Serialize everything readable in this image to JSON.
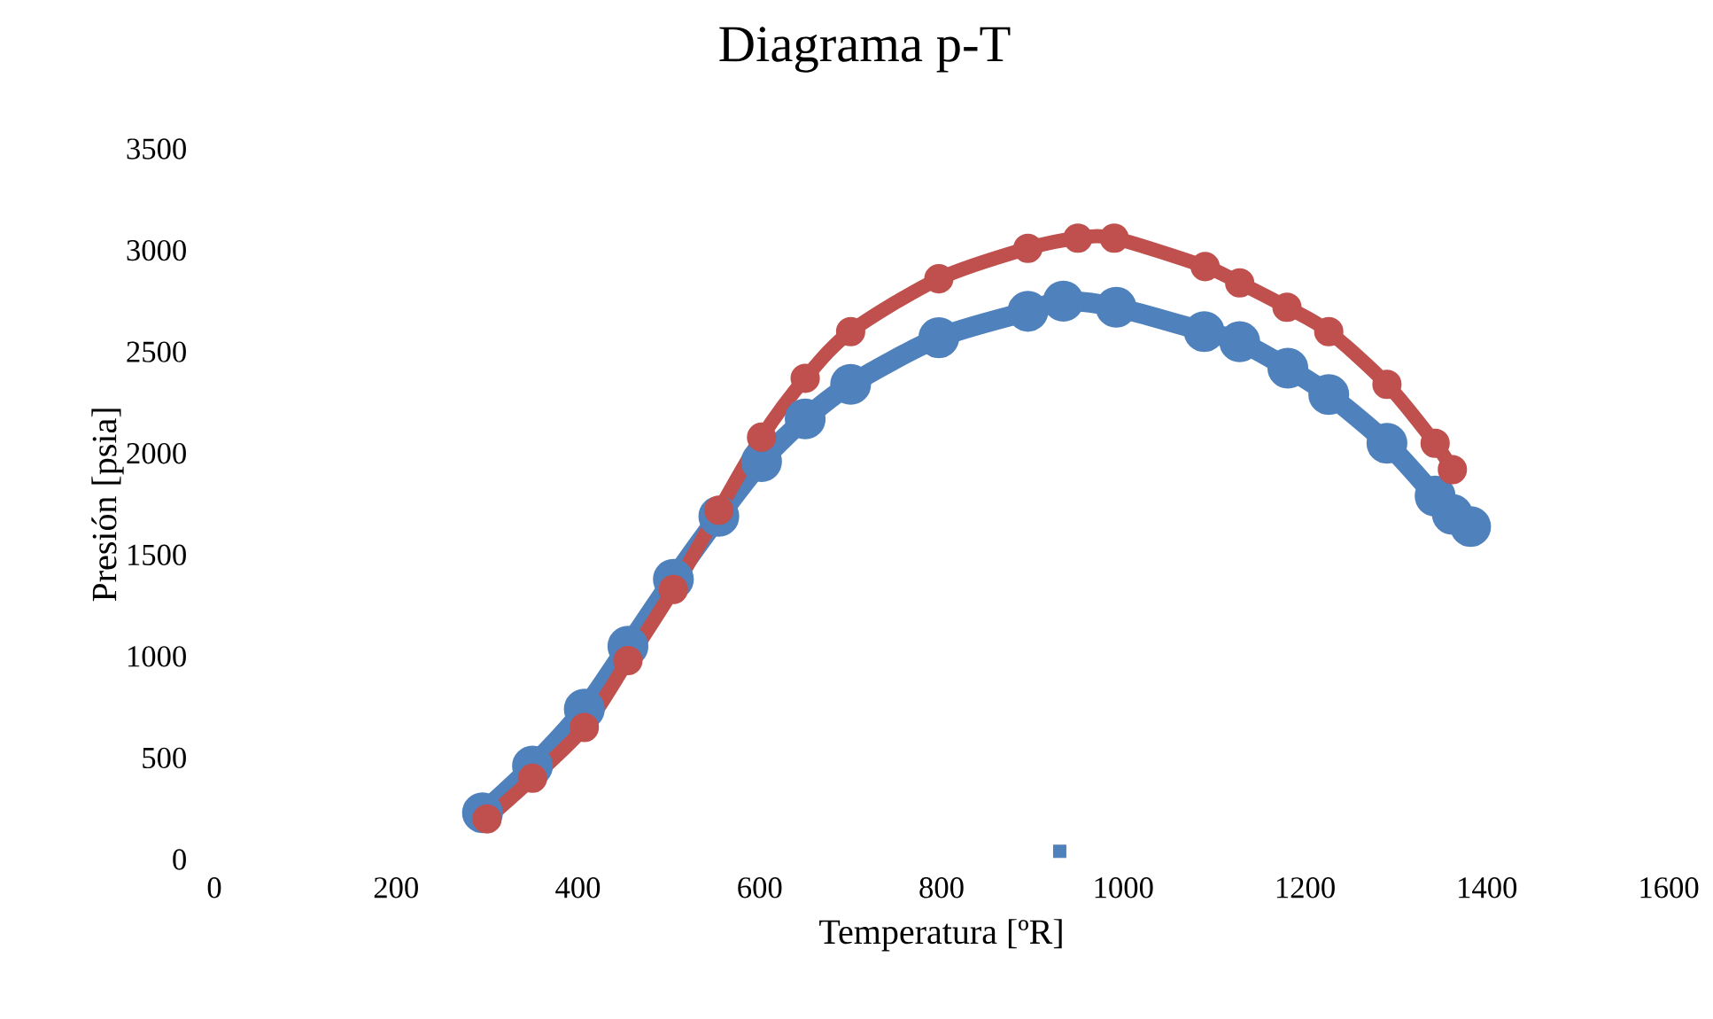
{
  "chart_data": {
    "type": "line",
    "title": "Diagrama p-T",
    "xlabel": "Temperatura [ºR]",
    "ylabel": "Presión [psia]",
    "xlim": [
      0,
      1600
    ],
    "xticks": [
      0,
      200,
      400,
      600,
      800,
      1000,
      1200,
      1400,
      1600
    ],
    "ylim": [
      0,
      3500
    ],
    "yticks": [
      0,
      500,
      1000,
      1500,
      2000,
      2500,
      3000,
      3500
    ],
    "grid": false,
    "legend": false,
    "marker": "circle",
    "series": [
      {
        "color": "#4f81bd",
        "x": [
          295,
          350,
          407,
          455,
          505,
          555,
          602,
          650,
          700,
          797,
          895,
          934,
          992,
          1089,
          1128,
          1181,
          1226,
          1290,
          1343,
          1362,
          1382
        ],
        "values": [
          230,
          460,
          740,
          1050,
          1380,
          1690,
          1960,
          2170,
          2340,
          2570,
          2700,
          2750,
          2720,
          2600,
          2550,
          2420,
          2290,
          2050,
          1790,
          1700,
          1640
        ]
      },
      {
        "color": "#c0504d",
        "x": [
          300,
          350,
          407,
          455,
          505,
          555,
          602,
          650,
          700,
          797,
          895,
          950,
          990,
          1090,
          1128,
          1180,
          1226,
          1290,
          1343,
          1362
        ],
        "values": [
          200,
          400,
          650,
          980,
          1330,
          1720,
          2080,
          2370,
          2600,
          2860,
          3010,
          3060,
          3060,
          2920,
          2840,
          2720,
          2600,
          2340,
          2050,
          1920
        ]
      },
      {
        "type": "scatter",
        "marker": "square",
        "color": "#4f81bd",
        "x": [
          930
        ],
        "values": [
          40
        ]
      }
    ]
  }
}
